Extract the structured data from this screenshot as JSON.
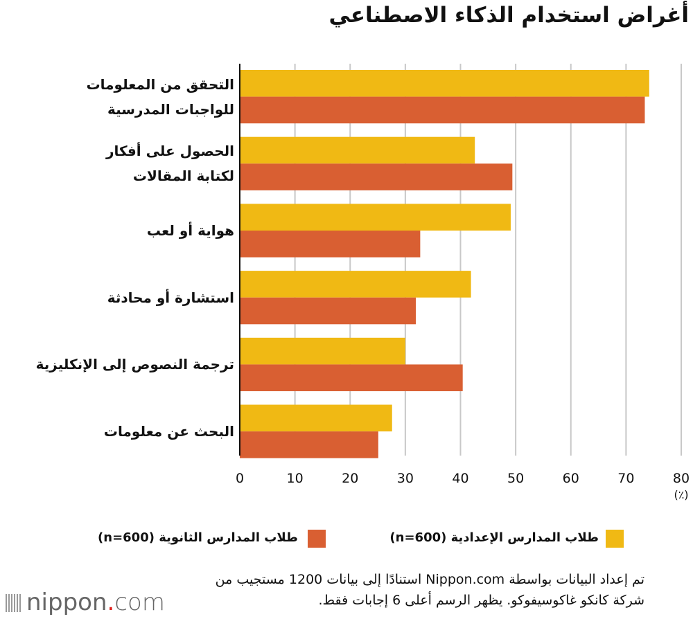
{
  "chart_data": {
    "type": "bar",
    "orientation": "horizontal",
    "title": "أغراض استخدام الذكاء الاصطناعي",
    "unit_label": "(٪)",
    "categories": [
      [
        "التحقق من المعلومات",
        "للواجبات المدرسية"
      ],
      [
        "الحصول على أفكار",
        "لكتابة المقالات"
      ],
      [
        "هواية أو لعب"
      ],
      [
        "استشارة أو محادثة"
      ],
      [
        "ترجمة النصوص إلى الإنكليزية"
      ],
      [
        "البحث عن معلومات"
      ]
    ],
    "series": [
      {
        "name": "طلاب المدارس الإعدادية (n=600)",
        "color": "#f0b914",
        "values": [
          74.2,
          42.6,
          49.1,
          41.9,
          30.0,
          27.6
        ]
      },
      {
        "name": "طلاب المدارس الثانوية (n=600)",
        "color": "#d95f32",
        "values": [
          73.4,
          49.4,
          32.7,
          31.9,
          40.4,
          25.1
        ]
      }
    ],
    "xlim": [
      0,
      80
    ],
    "ticks": [
      "0",
      "10",
      "20",
      "30",
      "40",
      "50",
      "60",
      "70",
      "80"
    ],
    "grid": true,
    "legend": "bottom"
  },
  "note": [
    "تم إعداد البيانات بواسطة Nippon.com استنادًا إلى بيانات 1200 مستجيب من",
    "شركة كانكو غاكوسيفوكو. يظهر الرسم أعلى 6 إجابات فقط."
  ],
  "logo": {
    "name": "nippon",
    "suffix": ".com"
  }
}
